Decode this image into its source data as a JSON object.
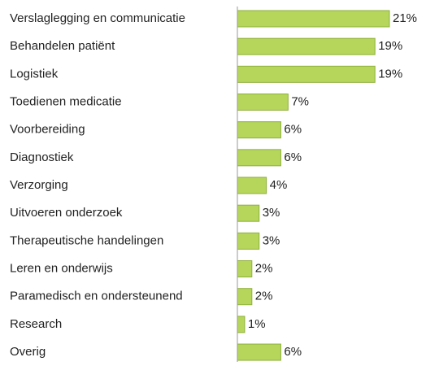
{
  "chart_data": {
    "type": "bar",
    "orientation": "horizontal",
    "categories": [
      "Verslaglegging en communicatie",
      "Behandelen patiënt",
      "Logistiek",
      "Toedienen medicatie",
      "Voorbereiding",
      "Diagnostiek",
      "Verzorging",
      "Uitvoeren onderzoek",
      "Therapeutische handelingen",
      "Leren en onderwijs",
      "Paramedisch en ondersteunend",
      "Research",
      "Overig"
    ],
    "values": [
      21,
      19,
      19,
      7,
      6,
      6,
      4,
      3,
      3,
      2,
      2,
      1,
      6
    ],
    "value_labels": [
      "21%",
      "19%",
      "19%",
      "7%",
      "6%",
      "6%",
      "4%",
      "3%",
      "3%",
      "2%",
      "2%",
      "1%",
      "6%"
    ],
    "color": "#b5d65b"
  }
}
